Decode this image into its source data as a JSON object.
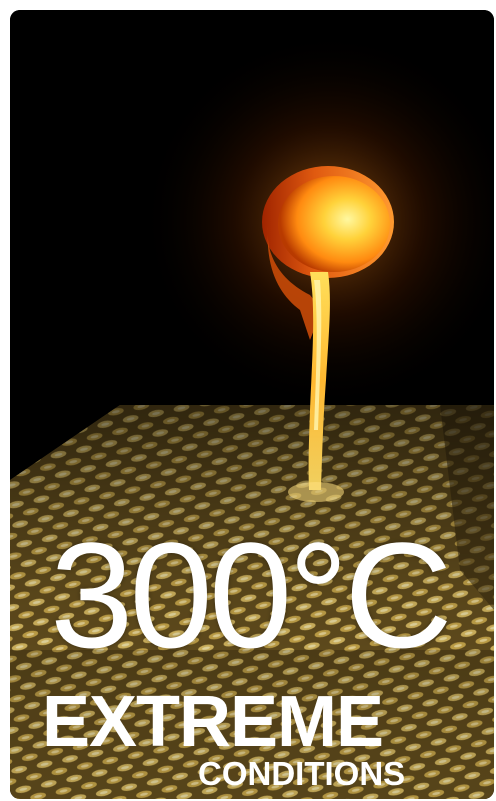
{
  "temperature_label": "300°C",
  "headline_word": "EXTREME",
  "subheadline_word": "CONDITIONS",
  "colors": {
    "background": "#000000",
    "molten_metal": "#ff8a1a",
    "mesh": "#c9a24a",
    "text": "#ffffff"
  },
  "image": {
    "subject": "crucible pouring molten metal onto woven fiberglass fabric"
  }
}
